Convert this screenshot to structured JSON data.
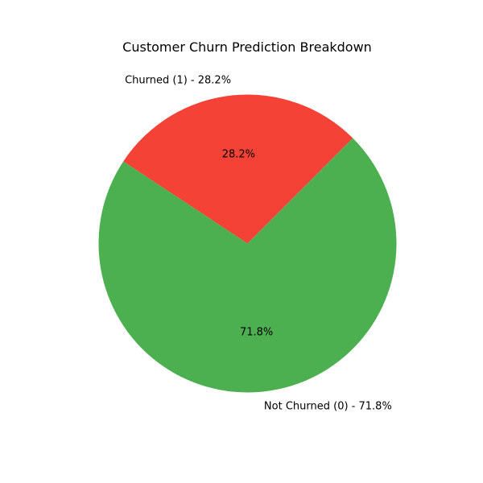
{
  "chart_data": {
    "type": "pie",
    "title": "Customer Churn Prediction Breakdown",
    "start_angle_deg": 45,
    "direction": "counterclockwise",
    "slices": [
      {
        "name": "Churned (1)",
        "label": "Churned (1) - 28.2%",
        "value": 28.2,
        "pct_label": "28.2%",
        "color": "#f44336"
      },
      {
        "name": "Not Churned (0)",
        "label": "Not Churned (0) - 71.8%",
        "value": 71.8,
        "pct_label": "71.8%",
        "color": "#4caf50"
      }
    ]
  }
}
